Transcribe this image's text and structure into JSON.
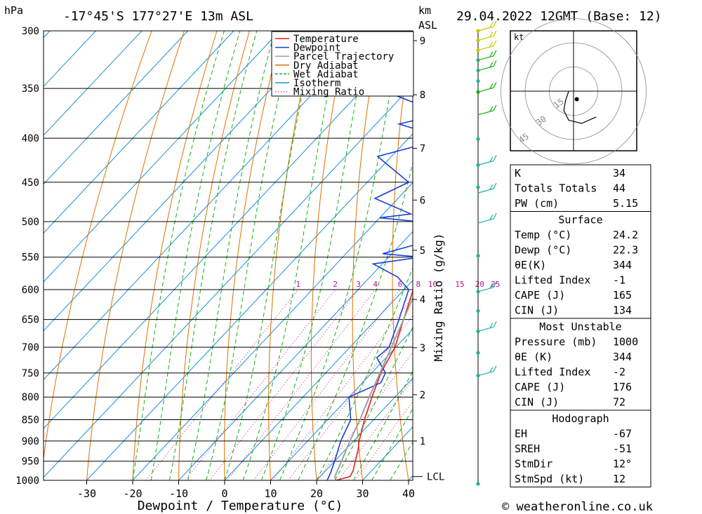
{
  "header": {
    "pressure_unit": "hPa",
    "location": "-17°45'S 177°27'E 13m ASL",
    "height_unit_line1": "km",
    "height_unit_line2": "ASL",
    "datetime": "29.04.2022 12GMT (Base: 12)"
  },
  "footer": {
    "copyright": "© weatheronline.co.uk"
  },
  "chart_data": {
    "type": "line",
    "xlabel": "Dewpoint / Temperature (°C)",
    "ylabel": "hPa",
    "right_axis_label": "Mixing Ratio (g/kg)",
    "xlim": [
      -40,
      40
    ],
    "ylim": [
      1000,
      300
    ],
    "x_ticks": [
      -30,
      -20,
      -10,
      0,
      10,
      20,
      30,
      40
    ],
    "pressure_levels": [
      300,
      350,
      400,
      450,
      500,
      550,
      600,
      650,
      700,
      750,
      800,
      850,
      900,
      950,
      1000
    ],
    "height_km": [
      {
        "km": 1,
        "p": 900
      },
      {
        "km": 2,
        "p": 795
      },
      {
        "km": 3,
        "p": 701
      },
      {
        "km": 4,
        "p": 616
      },
      {
        "km": 5,
        "p": 540
      },
      {
        "km": 6,
        "p": 472
      },
      {
        "km": 7,
        "p": 411
      },
      {
        "km": 8,
        "p": 356
      },
      {
        "km": 9,
        "p": 308
      }
    ],
    "lcl": {
      "label": "LCL",
      "p": 990
    },
    "mixing_ratio_labels": [
      "1",
      "2",
      "3",
      "4",
      "6",
      "8",
      "10",
      "15",
      "20",
      "25"
    ],
    "mixing_ratio_label_p": 600,
    "legend": [
      {
        "name": "Temperature",
        "color": "#e02020",
        "style": "solid"
      },
      {
        "name": "Dewpoint",
        "color": "#1a3fd8",
        "style": "solid"
      },
      {
        "name": "Parcel Trajectory",
        "color": "#a0a0a0",
        "style": "solid"
      },
      {
        "name": "Dry Adiabat",
        "color": "#e07000",
        "style": "solid"
      },
      {
        "name": "Wet Adiabat",
        "color": "#10b010",
        "style": "dashed"
      },
      {
        "name": "Isotherm",
        "color": "#1a8fd8",
        "style": "solid"
      },
      {
        "name": "Mixing Ratio",
        "color": "#c0108c",
        "style": "dotted"
      }
    ],
    "series": [
      {
        "name": "Temperature",
        "color": "#e02020",
        "points": [
          {
            "p": 1000,
            "t": 24.2
          },
          {
            "p": 990,
            "t": 26.5
          },
          {
            "p": 975,
            "t": 26.0
          },
          {
            "p": 950,
            "t": 24.5
          },
          {
            "p": 925,
            "t": 23.0
          },
          {
            "p": 900,
            "t": 21.2
          },
          {
            "p": 850,
            "t": 18.0
          },
          {
            "p": 800,
            "t": 15.0
          },
          {
            "p": 750,
            "t": 12.0
          },
          {
            "p": 700,
            "t": 9.8
          },
          {
            "p": 650,
            "t": 6.0
          },
          {
            "p": 600,
            "t": 2.0
          },
          {
            "p": 550,
            "t": -3.0
          },
          {
            "p": 500,
            "t": -9.0
          },
          {
            "p": 450,
            "t": -15.0
          },
          {
            "p": 400,
            "t": -22.0
          },
          {
            "p": 365,
            "t": -28.0
          }
        ]
      },
      {
        "name": "Dewpoint",
        "color": "#1a3fd8",
        "points": [
          {
            "p": 1000,
            "t": 22.3
          },
          {
            "p": 980,
            "t": 21.5
          },
          {
            "p": 950,
            "t": 20.0
          },
          {
            "p": 900,
            "t": 17.2
          },
          {
            "p": 850,
            "t": 15.0
          },
          {
            "p": 800,
            "t": 10.0
          },
          {
            "p": 770,
            "t": 14.0
          },
          {
            "p": 750,
            "t": 13.0
          },
          {
            "p": 720,
            "t": 8.0
          },
          {
            "p": 700,
            "t": 8.5
          },
          {
            "p": 650,
            "t": 5.0
          },
          {
            "p": 600,
            "t": 1.0
          },
          {
            "p": 580,
            "t": -4.0
          },
          {
            "p": 560,
            "t": -12.0
          },
          {
            "p": 550,
            "t": -3.0
          },
          {
            "p": 545,
            "t": -12.0
          },
          {
            "p": 530,
            "t": -6.0
          },
          {
            "p": 500,
            "t": -11.0
          },
          {
            "p": 495,
            "t": -20.0
          },
          {
            "p": 490,
            "t": -14.0
          },
          {
            "p": 470,
            "t": -25.0
          },
          {
            "p": 450,
            "t": -21.0
          },
          {
            "p": 420,
            "t": -33.0
          },
          {
            "p": 400,
            "t": -22.0
          },
          {
            "p": 385,
            "t": -35.0
          },
          {
            "p": 375,
            "t": -28.0
          },
          {
            "p": 365,
            "t": -35.0
          },
          {
            "p": 350,
            "t": -47.0
          },
          {
            "p": 345,
            "t": -40.0
          },
          {
            "p": 330,
            "t": -45.0
          },
          {
            "p": 300,
            "t": -45.5
          }
        ]
      },
      {
        "name": "Parcel Trajectory",
        "color": "#a0a0a0",
        "points": [
          {
            "p": 1000,
            "t": 24.2
          },
          {
            "p": 990,
            "t": 23.2
          },
          {
            "p": 950,
            "t": 21.5
          },
          {
            "p": 900,
            "t": 19.2
          },
          {
            "p": 850,
            "t": 17.0
          },
          {
            "p": 800,
            "t": 14.4
          },
          {
            "p": 750,
            "t": 11.8
          },
          {
            "p": 700,
            "t": 9.0
          },
          {
            "p": 650,
            "t": 6.0
          },
          {
            "p": 600,
            "t": 2.7
          },
          {
            "p": 550,
            "t": -1.0
          },
          {
            "p": 500,
            "t": -5.3
          },
          {
            "p": 450,
            "t": -10.5
          },
          {
            "p": 400,
            "t": -16.5
          },
          {
            "p": 365,
            "t": -22.0
          }
        ]
      }
    ],
    "wind_profile": {
      "barb_levels": [
        1000,
        975,
        950,
        925,
        900,
        850,
        800,
        700,
        650,
        600,
        500,
        450,
        400
      ],
      "dot_levels_p": [
        300,
        400,
        425,
        450,
        475,
        500,
        550,
        660,
        700,
        750,
        850,
        875,
        900,
        925,
        950,
        975,
        1000
      ]
    },
    "hodograph": {
      "unit": "kt",
      "ring_labels": [
        "15",
        "30",
        "45"
      ],
      "trace": [
        {
          "u": -3,
          "v": 0
        },
        {
          "u": -5,
          "v": -6
        },
        {
          "u": -6,
          "v": -12
        },
        {
          "u": -3,
          "v": -18
        },
        {
          "u": 5,
          "v": -20
        },
        {
          "u": 14,
          "v": -16
        }
      ],
      "storm_marker": {
        "u": 2,
        "v": -5
      }
    },
    "indices_table": {
      "rows": [
        {
          "label": "K",
          "value": "34"
        },
        {
          "label": "Totals Totals",
          "value": "44"
        },
        {
          "label": "PW (cm)",
          "value": "5.15"
        }
      ]
    },
    "surface_table": {
      "title": "Surface",
      "rows": [
        {
          "label": "Temp (°C)",
          "value": "24.2"
        },
        {
          "label": "Dewp (°C)",
          "value": "22.3"
        },
        {
          "label": "θE(K)",
          "value": "344"
        },
        {
          "label": "Lifted Index",
          "value": "-1"
        },
        {
          "label": "CAPE (J)",
          "value": "165"
        },
        {
          "label": "CIN (J)",
          "value": "134"
        }
      ]
    },
    "most_unstable_table": {
      "title": "Most Unstable",
      "rows": [
        {
          "label": "Pressure (mb)",
          "value": "1000"
        },
        {
          "label": "θE (K)",
          "value": "344"
        },
        {
          "label": "Lifted Index",
          "value": "-2"
        },
        {
          "label": "CAPE (J)",
          "value": "176"
        },
        {
          "label": "CIN (J)",
          "value": "72"
        }
      ]
    },
    "hodograph_table": {
      "title": "Hodograph",
      "rows": [
        {
          "label": "EH",
          "value": "-67"
        },
        {
          "label": "SREH",
          "value": "-51"
        },
        {
          "label": "StmDir",
          "value": "12°"
        },
        {
          "label": "StmSpd (kt)",
          "value": "12"
        }
      ]
    }
  }
}
